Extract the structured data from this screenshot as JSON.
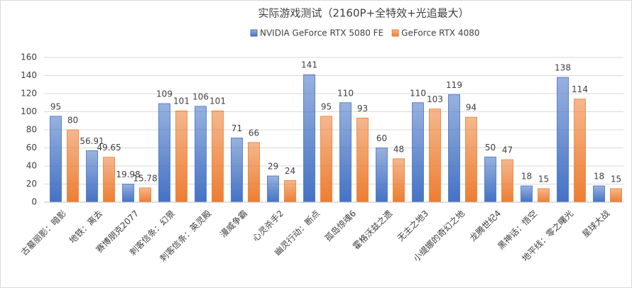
{
  "chart_data": {
    "type": "bar",
    "title": "实际游戏测试（2160P+全特效+光追最大）",
    "categories": [
      "古墓丽影：暗影",
      "地铁：离去",
      "赛博朋克2077",
      "刺客信条：幻景",
      "刺客信条：英灵殿",
      "漫威争霸",
      "心灵杀手2",
      "幽灵行动：断点",
      "孤岛惊魂6",
      "霍格沃兹之遗",
      "无主之地3",
      "小缇娜的奇幻之地",
      "龙腾世纪4",
      "黑神话：悟空",
      "地平线：零之曙光",
      "星球大战"
    ],
    "series": [
      {
        "name": "NVIDIA GeForce RTX 5080 FE",
        "color": "#4472c4",
        "values": [
          95,
          56.91,
          19.98,
          109,
          106,
          71,
          29,
          141,
          110,
          60,
          110,
          119,
          50,
          18,
          138,
          18
        ]
      },
      {
        "name": "GeForce RTX 4080",
        "color": "#ed7d31",
        "values": [
          80,
          49.65,
          15.78,
          101,
          101,
          66,
          24,
          95,
          93,
          48,
          103,
          94,
          47,
          15,
          114,
          15
        ]
      }
    ],
    "ylim": [
      0,
      160
    ],
    "yticks": [
      0,
      20,
      40,
      60,
      80,
      100,
      120,
      140,
      160
    ],
    "grid": true
  }
}
